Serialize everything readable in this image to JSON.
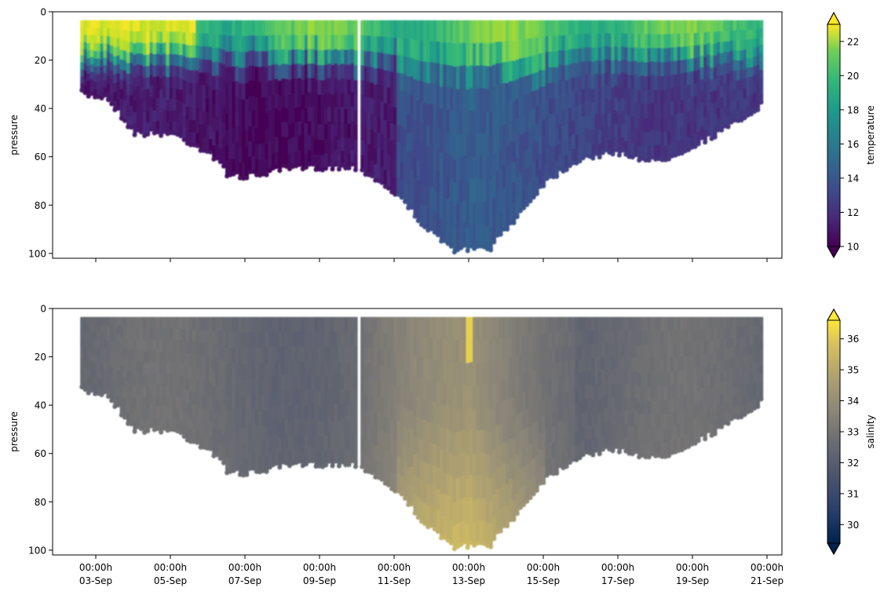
{
  "figure": {
    "shared_x_tick_labels": [
      [
        "00:00h",
        "03-Sep"
      ],
      [
        "00:00h",
        "05-Sep"
      ],
      [
        "00:00h",
        "07-Sep"
      ],
      [
        "00:00h",
        "09-Sep"
      ],
      [
        "00:00h",
        "11-Sep"
      ],
      [
        "00:00h",
        "13-Sep"
      ],
      [
        "00:00h",
        "15-Sep"
      ],
      [
        "00:00h",
        "17-Sep"
      ],
      [
        "00:00h",
        "19-Sep"
      ],
      [
        "00:00h",
        "21-Sep"
      ]
    ]
  },
  "chart_data": [
    {
      "type": "scatter",
      "title": "",
      "xlabel": "",
      "ylabel": "pressure",
      "x_range": [
        "2022-09-02",
        "2022-09-21"
      ],
      "ylim": [
        102,
        0
      ],
      "y_ticks": [
        0,
        20,
        40,
        60,
        80,
        100
      ],
      "x_ticks": [
        "03-Sep",
        "05-Sep",
        "07-Sep",
        "09-Sep",
        "11-Sep",
        "13-Sep",
        "15-Sep",
        "17-Sep",
        "19-Sep",
        "21-Sep"
      ],
      "colorbar": {
        "label": "temperature",
        "colormap": "viridis",
        "vmin": 10,
        "vmax": 23,
        "ticks": [
          10,
          12,
          14,
          16,
          18,
          20,
          22
        ],
        "extend": "both"
      },
      "data_extent": {
        "x_start": "2022-09-02T14:00",
        "x_end": "2022-09-20T21:00",
        "max_depth_profile": [
          [
            "2022-09-02T14:00",
            34
          ],
          [
            "2022-09-03T06:00",
            35
          ],
          [
            "2022-09-04T00:00",
            50
          ],
          [
            "2022-09-05T00:00",
            50
          ],
          [
            "2022-09-06T00:00",
            58
          ],
          [
            "2022-09-06T12:00",
            67
          ],
          [
            "2022-09-07T00:00",
            68
          ],
          [
            "2022-09-08T00:00",
            65
          ],
          [
            "2022-09-09T00:00",
            64
          ],
          [
            "2022-09-10T00:00",
            64
          ],
          [
            "2022-09-11T00:00",
            75
          ],
          [
            "2022-09-12T00:00",
            92
          ],
          [
            "2022-09-12T12:00",
            98
          ],
          [
            "2022-09-13T12:00",
            98
          ],
          [
            "2022-09-14T12:00",
            80
          ],
          [
            "2022-09-15T00:00",
            70
          ],
          [
            "2022-09-16T00:00",
            60
          ],
          [
            "2022-09-17T00:00",
            58
          ],
          [
            "2022-09-18T00:00",
            62
          ],
          [
            "2022-09-19T00:00",
            55
          ],
          [
            "2022-09-20T00:00",
            47
          ],
          [
            "2022-09-20T21:00",
            38
          ]
        ]
      },
      "gap_at": "2022-09-10T00:30"
    },
    {
      "type": "scatter",
      "title": "",
      "xlabel": "",
      "ylabel": "pressure",
      "x_range": [
        "2022-09-02",
        "2022-09-21"
      ],
      "ylim": [
        102,
        0
      ],
      "y_ticks": [
        0,
        20,
        40,
        60,
        80,
        100
      ],
      "x_ticks": [
        "03-Sep",
        "05-Sep",
        "07-Sep",
        "09-Sep",
        "11-Sep",
        "13-Sep",
        "15-Sep",
        "17-Sep",
        "19-Sep",
        "21-Sep"
      ],
      "colorbar": {
        "label": "salinity",
        "colormap": "cividis",
        "vmin": 29.4,
        "vmax": 36.6,
        "ticks": [
          30,
          31,
          32,
          33,
          34,
          35,
          36
        ],
        "extend": "both"
      },
      "gap_at": "2022-09-10T00:30"
    }
  ]
}
